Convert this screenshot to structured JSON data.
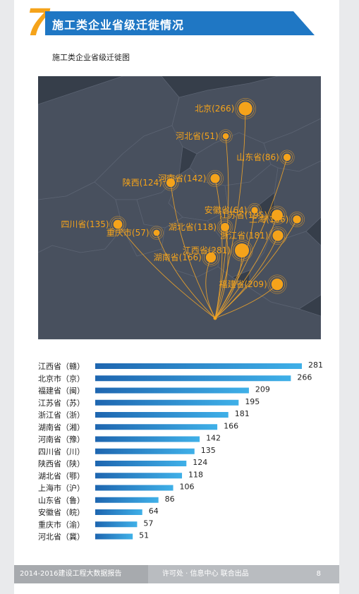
{
  "section": {
    "number": "7",
    "title": "施工类企业省级迁徙情况",
    "subtitle": "施工类企业省级迁徙图"
  },
  "colors": {
    "accent_blue": "#1f77c4",
    "number_orange": "#f5a31a",
    "map_bg": "#363e4a",
    "province_fill": "#48505e",
    "flow_line": "#f0a42a",
    "bar_start": "#1e66b0",
    "bar_end": "#3fb0e8"
  },
  "map": {
    "labels": [
      {
        "key": "beijing",
        "text": "北京(266)"
      },
      {
        "key": "hebei",
        "text": "河北省(51)"
      },
      {
        "key": "shandong",
        "text": "山东省(86)"
      },
      {
        "key": "henan",
        "text": "河南省(142)"
      },
      {
        "key": "shaanxi",
        "text": "陕西(124)"
      },
      {
        "key": "anhui",
        "text": "安徽省(64)"
      },
      {
        "key": "jiangsu",
        "text": "江苏省(195)"
      },
      {
        "key": "shanghai",
        "text": "上海(106)"
      },
      {
        "key": "sichuan",
        "text": "四川省(135)"
      },
      {
        "key": "chongqing",
        "text": "重庆市(57)"
      },
      {
        "key": "hubei",
        "text": "湖北省(118)"
      },
      {
        "key": "zhejiang",
        "text": "浙江省(181)"
      },
      {
        "key": "jiangxi",
        "text": "江西省(281)"
      },
      {
        "key": "hunan",
        "text": "湖南省(166)"
      },
      {
        "key": "fujian",
        "text": "福建省(209)"
      }
    ]
  },
  "chart_data": {
    "type": "bar",
    "orientation": "horizontal",
    "categories": [
      "江西省（赣）",
      "北京市（京）",
      "福建省（闽）",
      "江苏省（苏）",
      "浙江省（浙）",
      "湖南省（湘）",
      "河南省（豫）",
      "四川省（川）",
      "陕西省（陕）",
      "湖北省（鄂）",
      "上海市（沪）",
      "山东省（鲁）",
      "安徽省（皖）",
      "重庆市（渝）",
      "河北省（冀）"
    ],
    "values": [
      281,
      266,
      209,
      195,
      181,
      166,
      142,
      135,
      124,
      118,
      106,
      86,
      64,
      57,
      51
    ],
    "data_labels": true,
    "grid": false
  },
  "footer": {
    "report": "2014-2016建设工程大数据报告",
    "source": "许可处 · 信息中心  联合出品",
    "page": "8"
  }
}
